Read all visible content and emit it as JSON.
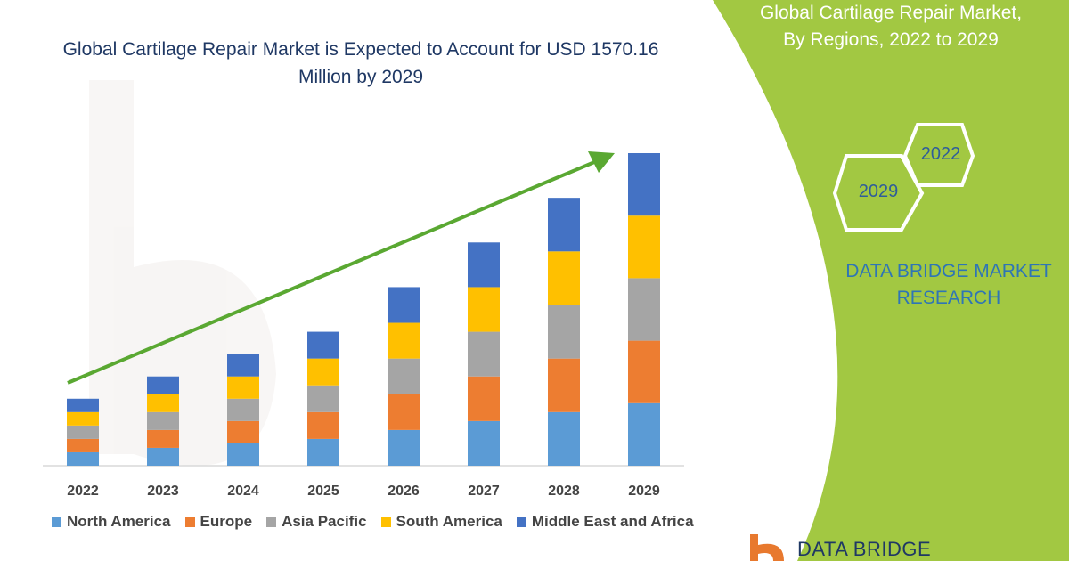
{
  "chart_data": {
    "type": "bar",
    "stacked": true,
    "title": "Global Cartilage Repair Market is Expected to Account for USD 1570.16 Million by 2029",
    "categories": [
      "2022",
      "2023",
      "2024",
      "2025",
      "2026",
      "2027",
      "2028",
      "2029"
    ],
    "series": [
      {
        "name": "North America",
        "color": "#5b9bd5",
        "values": [
          3.0,
          4.0,
          5.0,
          6.0,
          8.0,
          10.0,
          12.0,
          14.0
        ]
      },
      {
        "name": "Europe",
        "color": "#ed7d31",
        "values": [
          3.0,
          4.0,
          5.0,
          6.0,
          8.0,
          10.0,
          12.0,
          14.0
        ]
      },
      {
        "name": "Asia Pacific",
        "color": "#a5a5a5",
        "values": [
          3.0,
          4.0,
          5.0,
          6.0,
          8.0,
          10.0,
          12.0,
          14.0
        ]
      },
      {
        "name": "South America",
        "color": "#ffc000",
        "values": [
          3.0,
          4.0,
          5.0,
          6.0,
          8.0,
          10.0,
          12.0,
          14.0
        ]
      },
      {
        "name": "Middle East and Africa",
        "color": "#4472c4",
        "values": [
          3.0,
          4.0,
          5.0,
          6.0,
          8.0,
          10.0,
          12.0,
          14.0
        ]
      }
    ],
    "ylim": [
      0,
      70
    ],
    "legend_position": "bottom",
    "grid": false,
    "trend_arrow_color": "#5aa832"
  },
  "panel": {
    "title_line1": "Global Cartilage Repair Market,",
    "title_line2": "By Regions, 2022 to 2029",
    "hex_left": "2029",
    "hex_right": "2022",
    "brand_line1": "DATA BRIDGE MARKET",
    "brand_line2": "RESEARCH",
    "logo_text": "DATA BRIDGE",
    "accent_color": "#a2c842"
  }
}
